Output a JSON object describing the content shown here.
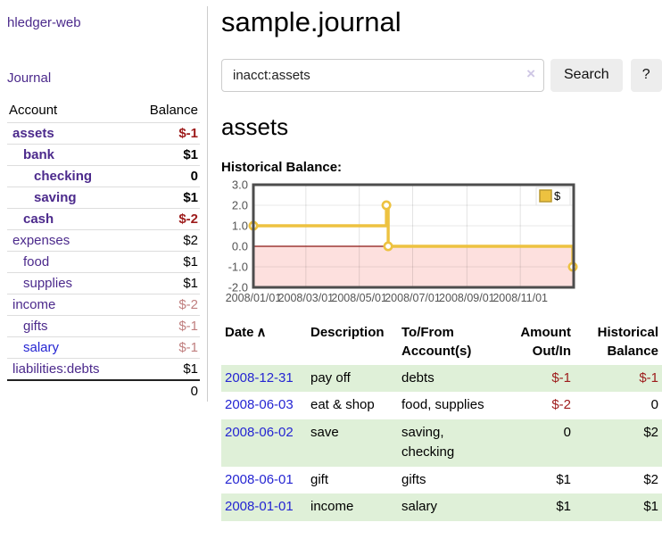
{
  "sidebar": {
    "brand": "hledger-web",
    "journal_link": "Journal",
    "accounts_table": {
      "headers": {
        "account": "Account",
        "balance": "Balance"
      },
      "rows": [
        {
          "label": "assets",
          "balance": "$-1",
          "depth": 1,
          "bold": true,
          "balance_style": "neg",
          "label_style": "purple"
        },
        {
          "label": "bank",
          "balance": "$1",
          "depth": 2,
          "bold": true,
          "balance_style": "",
          "label_style": "purple"
        },
        {
          "label": "checking",
          "balance": "0",
          "depth": 3,
          "bold": true,
          "balance_style": "",
          "label_style": "purple"
        },
        {
          "label": "saving",
          "balance": "$1",
          "depth": 3,
          "bold": true,
          "balance_style": "",
          "label_style": "purple"
        },
        {
          "label": "cash",
          "balance": "$-2",
          "depth": 2,
          "bold": true,
          "balance_style": "neg",
          "label_style": "purple"
        },
        {
          "label": "expenses",
          "balance": "$2",
          "depth": 1,
          "bold": false,
          "balance_style": "",
          "label_style": "purple"
        },
        {
          "label": "food",
          "balance": "$1",
          "depth": 2,
          "bold": false,
          "balance_style": "",
          "label_style": "purple"
        },
        {
          "label": "supplies",
          "balance": "$1",
          "depth": 2,
          "bold": false,
          "balance_style": "",
          "label_style": "purple"
        },
        {
          "label": "income",
          "balance": "$-2",
          "depth": 1,
          "bold": false,
          "balance_style": "fneg",
          "label_style": "purple"
        },
        {
          "label": "gifts",
          "balance": "$-1",
          "depth": 2,
          "bold": false,
          "balance_style": "fneg",
          "label_style": "purple"
        },
        {
          "label": "salary",
          "balance": "$-1",
          "depth": 2,
          "bold": false,
          "balance_style": "fneg",
          "label_style": "blue"
        },
        {
          "label": "liabilities:debts",
          "balance": "$1",
          "depth": 1,
          "bold": false,
          "balance_style": "",
          "label_style": "purple"
        }
      ],
      "total": "0"
    }
  },
  "main": {
    "title": "sample.journal",
    "search": {
      "value": "inacct:assets",
      "clear_icon": "×",
      "button_label": "Search",
      "help_label": "?"
    },
    "account_heading": "assets",
    "chart_heading": "Historical Balance:",
    "register_table": {
      "headers": {
        "date": "Date",
        "sort_icon": "∧",
        "description": "Description",
        "accounts_line1": "To/From",
        "accounts_line2": "Account(s)",
        "amount_line1": "Amount",
        "amount_line2": "Out/In",
        "balance_line1": "Historical",
        "balance_line2": "Balance"
      },
      "rows": [
        {
          "date": "2008-12-31",
          "description": "pay off",
          "accounts": "debts",
          "amount": "$-1",
          "amount_style": "neg",
          "balance": "$-1",
          "balance_style": "neg"
        },
        {
          "date": "2008-06-03",
          "description": "eat & shop",
          "accounts": "food, supplies",
          "amount": "$-2",
          "amount_style": "neg",
          "balance": "0",
          "balance_style": ""
        },
        {
          "date": "2008-06-02",
          "description": "save",
          "accounts": "saving, checking",
          "amount": "0",
          "amount_style": "",
          "balance": "$2",
          "balance_style": ""
        },
        {
          "date": "2008-06-01",
          "description": "gift",
          "accounts": "gifts",
          "amount": "$1",
          "amount_style": "",
          "balance": "$2",
          "balance_style": ""
        },
        {
          "date": "2008-01-01",
          "description": "income",
          "accounts": "salary",
          "amount": "$1",
          "amount_style": "",
          "balance": "$1",
          "balance_style": ""
        }
      ]
    }
  },
  "chart_data": {
    "type": "line",
    "title": "Historical Balance:",
    "step": true,
    "series": [
      {
        "name": "$",
        "color": "#edc240",
        "points": [
          {
            "date": "2008-01-01",
            "value": 1
          },
          {
            "date": "2008-06-01",
            "value": 2
          },
          {
            "date": "2008-06-03",
            "value": 0
          },
          {
            "date": "2008-12-31",
            "value": -1
          }
        ]
      }
    ],
    "x_range": [
      "2008-01-01",
      "2009-01-01"
    ],
    "ylim": [
      -2,
      3
    ],
    "yticks": [
      "3.0",
      "2.0",
      "1.0",
      "0.0",
      "-1.0",
      "-2.0"
    ],
    "xticks": [
      "2008/01/01",
      "2008/03/01",
      "2008/05/01",
      "2008/07/01",
      "2008/09/01",
      "2008/11/01"
    ],
    "legend": {
      "label": "$",
      "position": "top-right"
    },
    "grid": true,
    "negative_fill": "#fde0de",
    "zero_line": "#8b1513",
    "plot_border": "#4d4d4d",
    "tick_color": "#545454"
  },
  "colors": {
    "link_purple": "#4c2a8c",
    "link_blue": "#2525d2",
    "negative_red": "#9d1b1b",
    "faded_red": "#c07f7f",
    "row_green": "#dff0d8",
    "series_gold": "#edc240"
  }
}
